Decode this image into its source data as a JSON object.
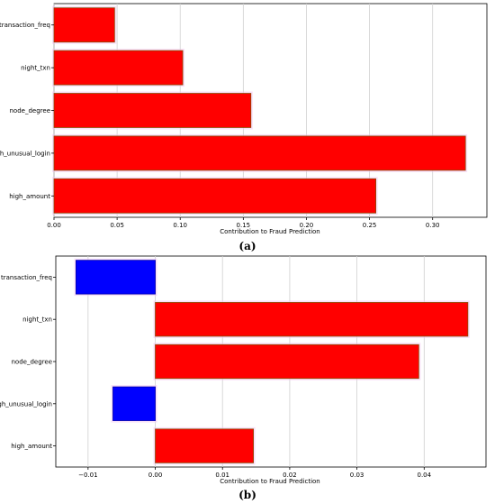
{
  "chart_data": [
    {
      "type": "bar",
      "orientation": "horizontal",
      "panel_label": "(a)",
      "categories": [
        "transaction_freq",
        "night_txn",
        "node_degree",
        "high_unusual_login",
        "high_amount"
      ],
      "values": [
        0.048,
        0.102,
        0.156,
        0.326,
        0.255
      ],
      "colors": [
        "#ff0000",
        "#ff0000",
        "#ff0000",
        "#ff0000",
        "#ff0000"
      ],
      "xlabel": "Contribution to Fraud Prediction",
      "ylabel": "",
      "xlim": [
        0,
        0.343
      ],
      "xticks": [
        0,
        0.05,
        0.1,
        0.15,
        0.2,
        0.25,
        0.3
      ],
      "xtick_labels": [
        "0.00",
        "0.05",
        "0.10",
        "0.15",
        "0.20",
        "0.25",
        "0.30"
      ],
      "grid": "vertical"
    },
    {
      "type": "bar",
      "orientation": "horizontal",
      "panel_label": "(b)",
      "categories": [
        "transaction_freq",
        "night_txn",
        "node_degree",
        "high_unusual_login",
        "high_amount"
      ],
      "values": [
        -0.0118,
        0.0465,
        0.0392,
        -0.0063,
        0.0146
      ],
      "colors": [
        "#0000ff",
        "#ff0000",
        "#ff0000",
        "#0000ff",
        "#ff0000"
      ],
      "xlabel": "Contribution to Fraud Prediction",
      "ylabel": "",
      "xlim": [
        -0.0148,
        0.0492
      ],
      "xticks": [
        -0.01,
        0,
        0.01,
        0.02,
        0.03,
        0.04
      ],
      "xtick_labels": [
        "−0.01",
        "0.00",
        "0.01",
        "0.02",
        "0.03",
        "0.04"
      ],
      "grid": "vertical"
    }
  ]
}
